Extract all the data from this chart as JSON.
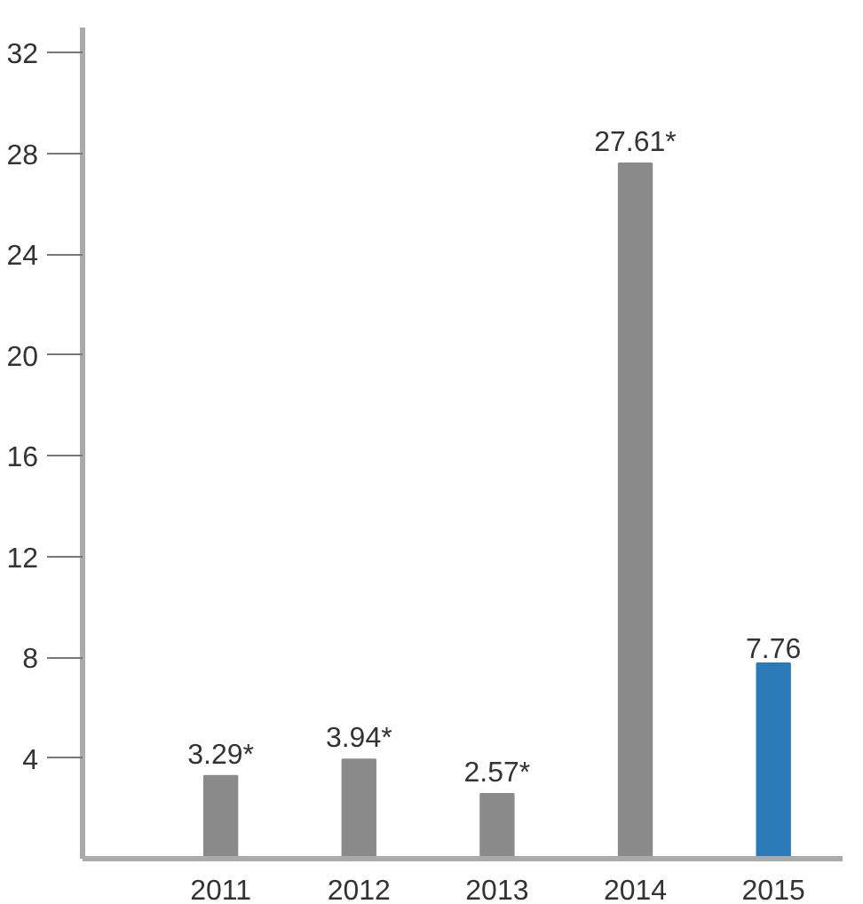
{
  "chart_data": {
    "type": "bar",
    "categories": [
      "2011",
      "2012",
      "2013",
      "2014",
      "2015"
    ],
    "values": [
      3.29,
      3.94,
      2.57,
      27.61,
      7.76
    ],
    "colors": [
      "#8a8a8a",
      "#8a8a8a",
      "#8a8a8a",
      "#8a8a8a",
      "#2a7ab8"
    ],
    "value_labels": [
      "3.29*",
      "3.94*",
      "2.57*",
      "27.61*",
      "7.76"
    ],
    "ylim": [
      0,
      33
    ],
    "yticks": [
      4,
      8,
      12,
      16,
      20,
      24,
      28,
      32
    ],
    "grid": false
  }
}
